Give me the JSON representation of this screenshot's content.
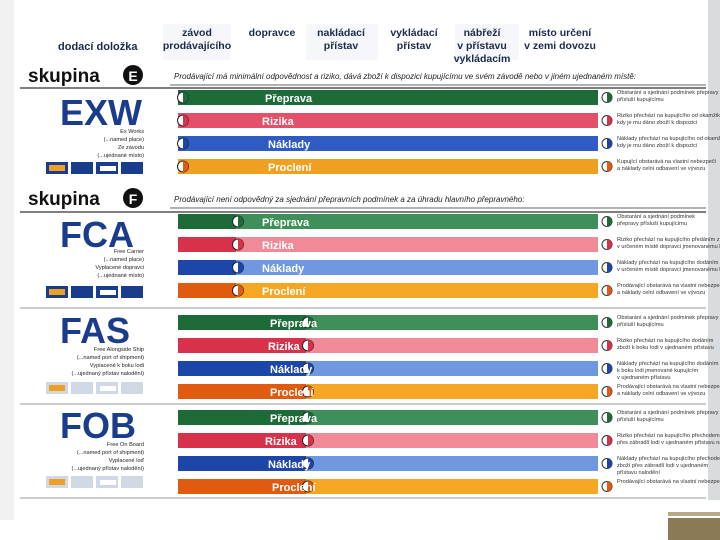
{
  "header": {
    "first_col": "dodací doložka",
    "cols": [
      "závod\nprodávajícího",
      "dopravce",
      "nakládací\npřístav",
      "vykládací\npřístav",
      "nábřeží\nv přístavu\nvykládacím",
      "místo určení\nv zemi dovozu"
    ]
  },
  "groups": [
    {
      "word": "skupina",
      "letter": "E",
      "statement": "Prodávající má minimální odpovědnost a riziko, dává zboží k dispozici kupujícímu ve svém závodě nebo v jiném ujednaném místě:"
    },
    {
      "word": "skupina",
      "letter": "F",
      "statement": "Prodávající není odpovědný za sjednání přepravních podmínek a za úhradu hlavního přepravného:"
    }
  ],
  "bar_labels": [
    "Přeprava",
    "Rizika",
    "Náklady",
    "Proclení"
  ],
  "colors": {
    "transport_dark": "#1e6b3a",
    "transport_light": "#3f8f5a",
    "risk_dark": "#d8324a",
    "risk_light": "#f08a96",
    "cost_dark": "#1c46a8",
    "cost_light": "#6f98e0",
    "customs_dark": "#e05a10",
    "customs_light": "#f5a623",
    "title_blue": "#1a3c8c"
  },
  "terms": [
    {
      "code": "EXW",
      "lines": [
        "Ex Works",
        "(...named place)",
        "Ze závodu",
        "(...ujednané místo)"
      ],
      "notes": [
        "Obstarání a sjednání podmínek přepravy\npřísluší kupujícímu",
        "Riziko přechází na kupujícího od okamžiku,\nkdy je mu dáno zboží k dispozici",
        "Náklady přechází na kupujícího od okamžiku\nkdy je mu dáno zboží k dispozici",
        "Kupující obstarává na vlastní nebezpečí\na náklady celní odbavení ve vývozu"
      ]
    },
    {
      "code": "FCA",
      "lines": [
        "Free Carrier",
        "(...named place)",
        "Vyplacené dopravci",
        "(...ujednané místo)"
      ],
      "notes": [
        "Obstarání a sjednání podmínek\npřepravy přísluší kupujícímu",
        "Riziko přechází na kupujícího předáním zboží\nv určeném místě dopravci jmenovanému kupujícím",
        "Náklady přechází na kupujícího dodáním zboží\nv určeném místě dopravci jmenovanému kupujícím",
        "Prodávající obstarává na vlastní nebezpečí\na náklady celní odbavení ve vývozu"
      ]
    },
    {
      "code": "FAS",
      "lines": [
        "Free Alongside Ship",
        "(...named port of shipment)",
        "Vyplacené k boku lodi",
        "(...ujednaný přístav nalodění)"
      ],
      "notes": [
        "Obstarání a sjednání podmínek přepravy\npřísluší kupujícímu",
        "Riziko přechází na kupujícího dodáním\nzboží k boku lodi v ujednaném přístavu",
        "Náklady přechází na kupujícího dodáním zbo\nk boku lodi jmenované kupujícím\nv ujednaném přístavu",
        "Prodávající obstarává na vlastní nebezpečí\na náklady celní odbavení ve vývozu"
      ]
    },
    {
      "code": "FOB",
      "lines": [
        "Free On Board",
        "(...named port of shipment)",
        "Vyplacené loď",
        "(...ujednaný přístav nalodění)"
      ],
      "notes": [
        "Obstarání a sjednání podmínek přepravy\npřísluší kupujícímu",
        "Riziko přechází na kupujícího přechodem zbo\npřes zábradlí lodi v ujednaném přístavu nalo",
        "Náklady přechází na kupujícího přechode\nzboží přes zábradlí lodi v ujednaném\npřístavu nalodění",
        "Prodávající obstarává na vlastní nebezpečí"
      ]
    }
  ]
}
